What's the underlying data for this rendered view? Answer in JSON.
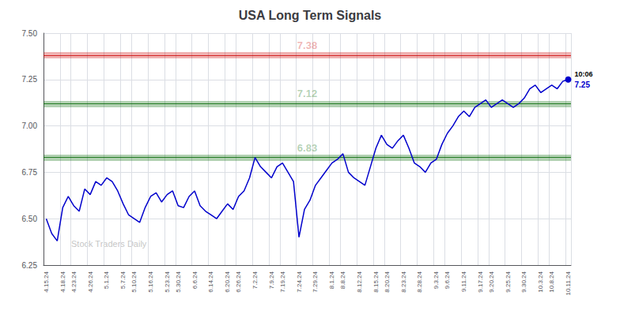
{
  "chart_data": {
    "type": "line",
    "title": "USA Long Term Signals",
    "categories": [
      "4.15.24",
      null,
      null,
      "4.18.24",
      null,
      "4.23.24",
      null,
      null,
      "4.26.24",
      null,
      null,
      "5.1.24",
      null,
      null,
      "5.7.24",
      null,
      "5.10.24",
      null,
      null,
      "5.16.24",
      null,
      null,
      "5.23.24",
      null,
      "5.30.24",
      null,
      null,
      "6.6.24",
      null,
      null,
      "6.14.24",
      null,
      null,
      "6.20.24",
      null,
      "6.26.24",
      null,
      null,
      "7.2.24",
      null,
      null,
      "7.9.24",
      null,
      "7.19.24",
      null,
      null,
      "7.24.24",
      null,
      null,
      "7.29.24",
      null,
      null,
      "8.1.24",
      null,
      "8.8.24",
      null,
      null,
      "8.12.24",
      null,
      null,
      "8.15.24",
      null,
      "8.20.24",
      null,
      null,
      "8.23.24",
      null,
      null,
      "8.28.24",
      null,
      null,
      "9.3.24",
      null,
      "9.6.24",
      null,
      null,
      "9.11.24",
      null,
      null,
      "9.17.24",
      null,
      "9.20.24",
      null,
      null,
      "9.25.24",
      null,
      null,
      "9.30.24",
      null,
      null,
      "10.3.24",
      null,
      "10.8.24",
      null,
      null,
      "10.11.24"
    ],
    "values": [
      6.5,
      6.42,
      6.38,
      6.56,
      6.62,
      6.57,
      6.54,
      6.66,
      6.63,
      6.7,
      6.68,
      6.72,
      6.7,
      6.65,
      6.58,
      6.52,
      6.5,
      6.48,
      6.56,
      6.62,
      6.64,
      6.59,
      6.63,
      6.65,
      6.57,
      6.56,
      6.62,
      6.65,
      6.57,
      6.54,
      6.52,
      6.5,
      6.54,
      6.58,
      6.55,
      6.62,
      6.65,
      6.72,
      6.83,
      6.78,
      6.75,
      6.72,
      6.78,
      6.8,
      6.75,
      6.7,
      6.4,
      6.55,
      6.6,
      6.68,
      6.72,
      6.76,
      6.8,
      6.82,
      6.85,
      6.75,
      6.72,
      6.7,
      6.68,
      6.78,
      6.88,
      6.95,
      6.9,
      6.88,
      6.92,
      6.95,
      6.88,
      6.8,
      6.78,
      6.75,
      6.8,
      6.82,
      6.9,
      6.96,
      7.0,
      7.05,
      7.08,
      7.05,
      7.1,
      7.12,
      7.14,
      7.1,
      7.12,
      7.14,
      7.12,
      7.1,
      7.12,
      7.15,
      7.2,
      7.22,
      7.18,
      7.2,
      7.22,
      7.2,
      7.24,
      7.25
    ],
    "color": "#0000CC",
    "ylim": [
      6.25,
      7.5
    ],
    "yticks": [
      6.25,
      {
        "value": 6.5,
        "label": "6.50"
      },
      6.75,
      {
        "value": 7,
        "label": "7.00"
      },
      7.25,
      {
        "value": 7.5,
        "label": "7.50"
      }
    ],
    "grid": true,
    "hlines": [
      {
        "value": 7.38,
        "label": "7.38",
        "color": "#cc0000"
      },
      {
        "value": 7.12,
        "label": "7.12",
        "color": "#006600"
      },
      {
        "value": 6.83,
        "label": "6.83",
        "color": "#006600"
      }
    ],
    "annotations": [
      {
        "text": "10:06",
        "value": 7.25
      },
      {
        "text": "Stock Traders Daily",
        "color": "#aaaaaa"
      }
    ]
  }
}
